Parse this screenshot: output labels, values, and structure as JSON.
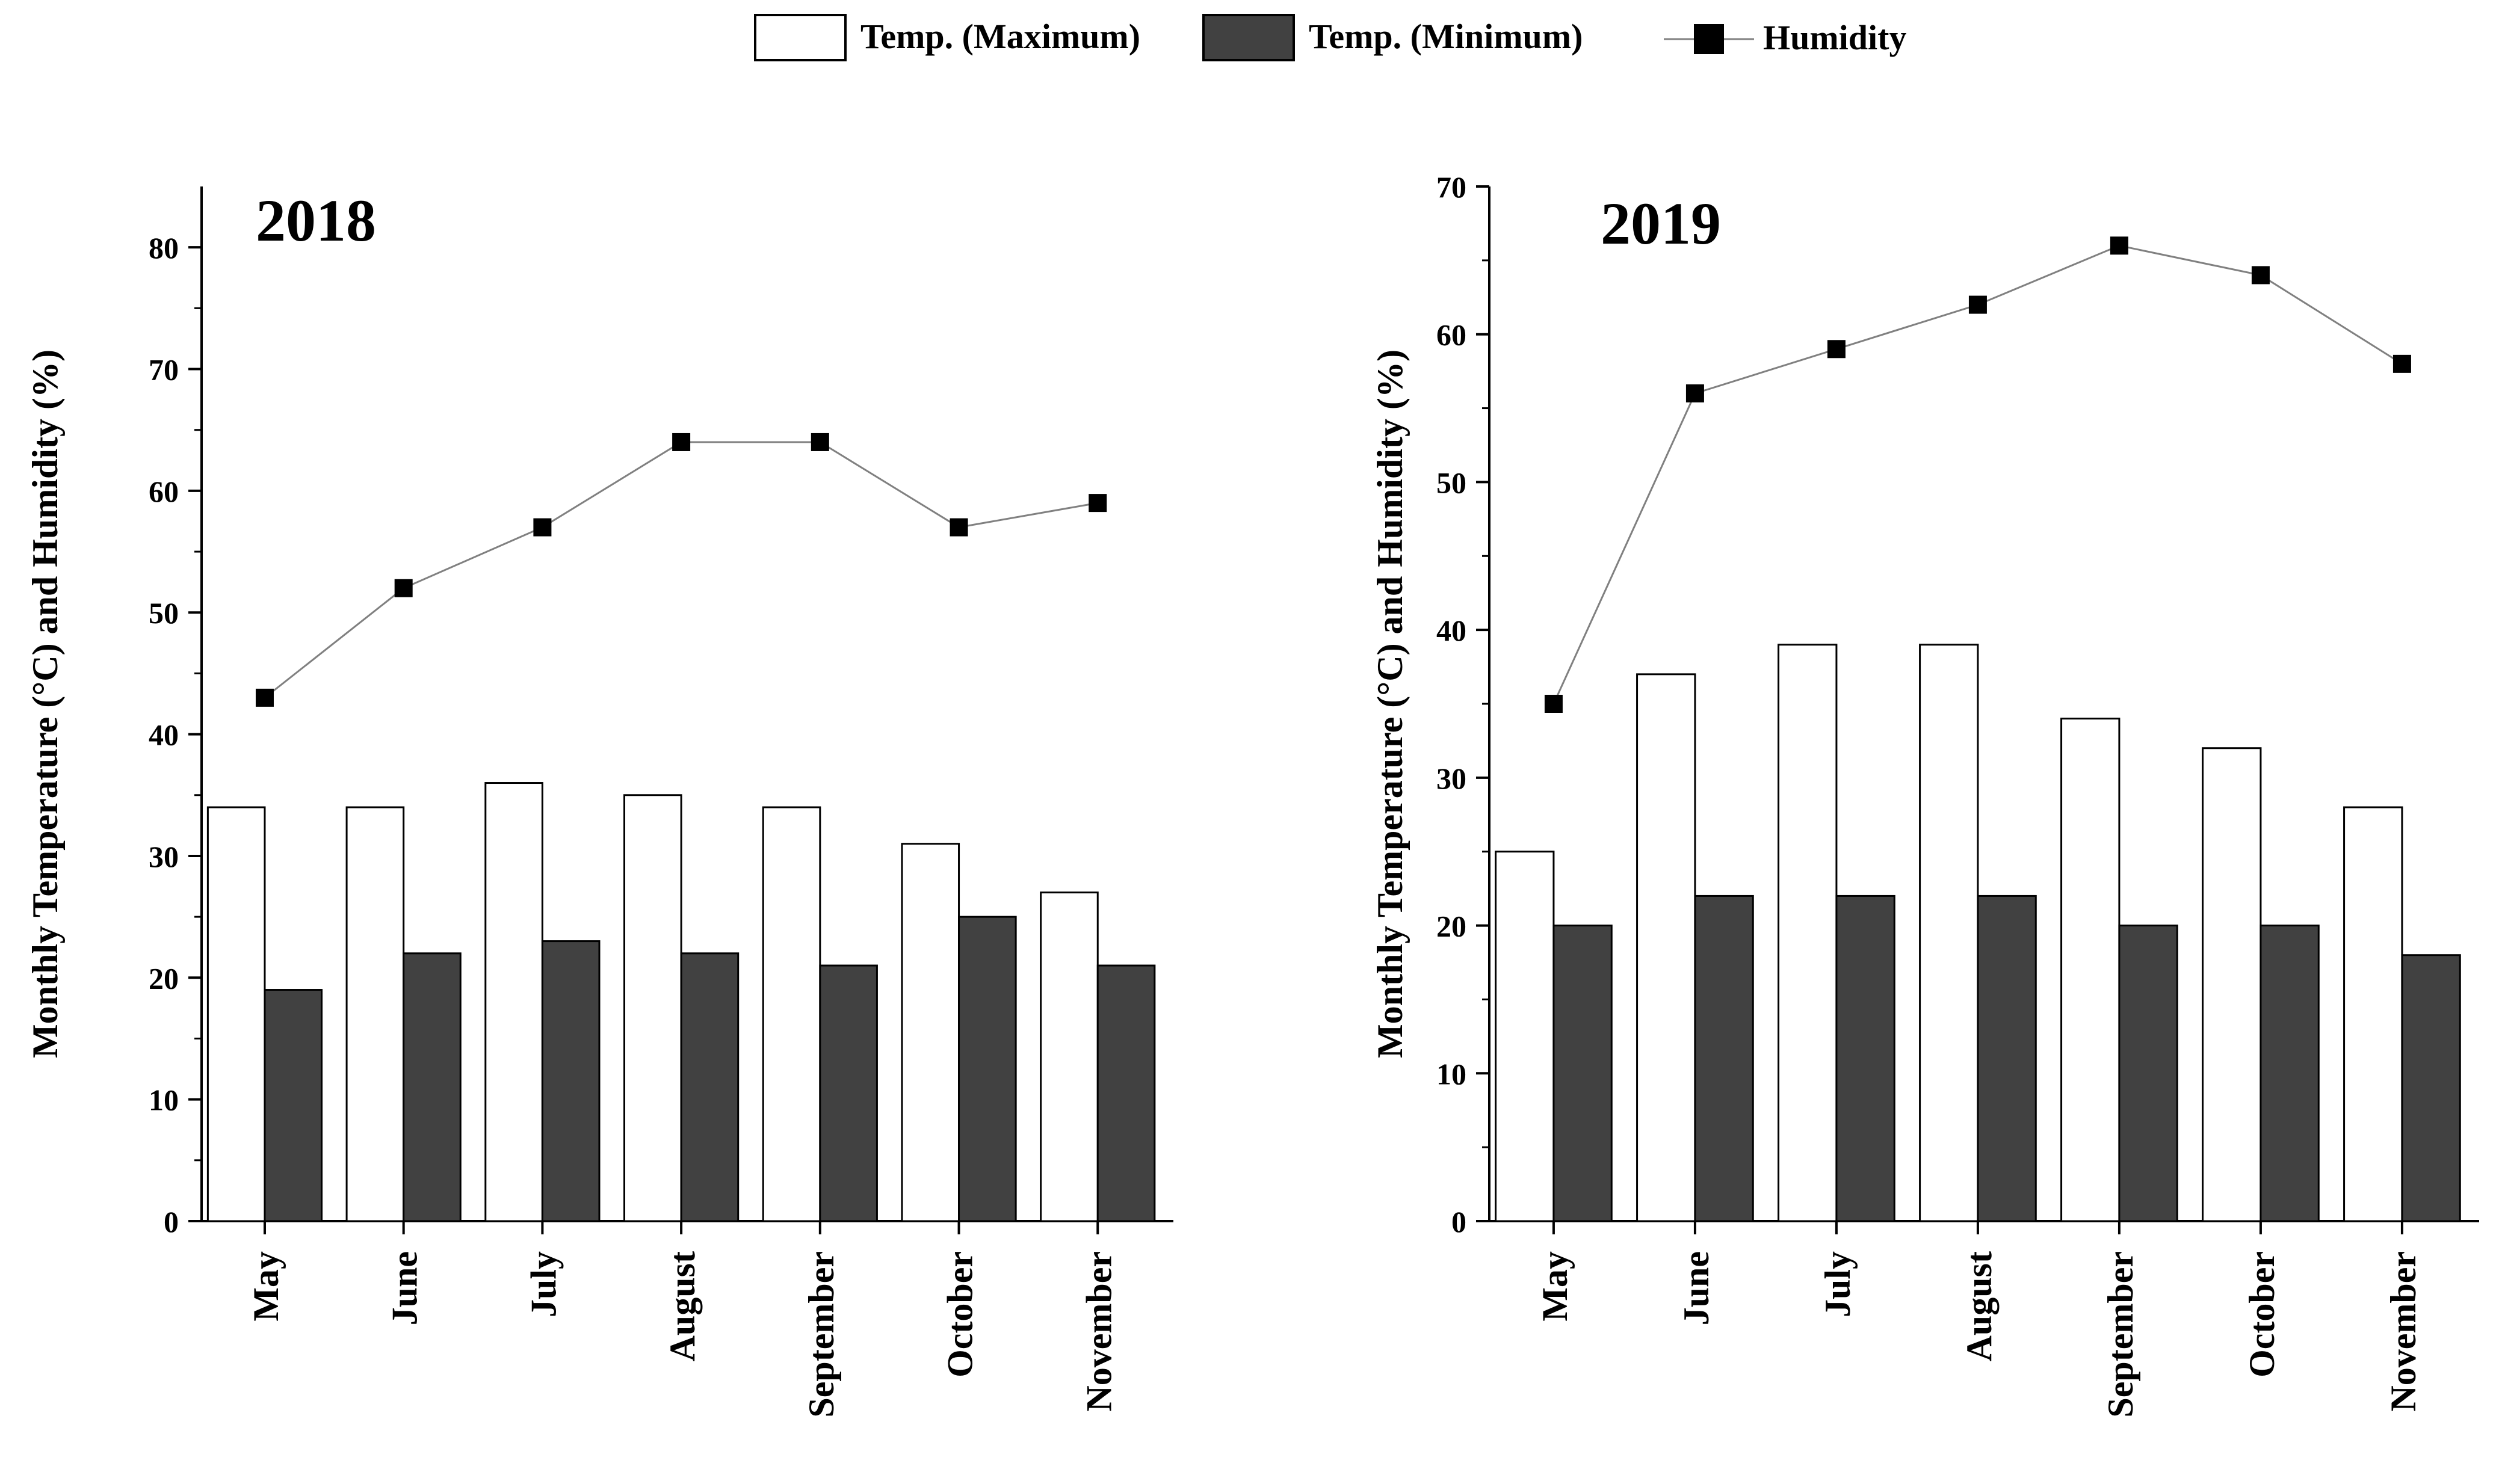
{
  "legend": {
    "max_label": "Temp. (Maximum)",
    "min_label": "Temp. (Minimum)",
    "humidity_label": "Humidity"
  },
  "colors": {
    "max_fill": "#ffffff",
    "min_fill": "#414141",
    "stroke": "#000000",
    "humidity_line": "#808080",
    "humidity_marker": "#000000"
  },
  "chart_data": [
    {
      "type": "bar",
      "title": "2018",
      "xlabel": "",
      "ylabel": "Monthly Temperature  (°C) and Humidity (%)",
      "categories": [
        "May",
        "June",
        "July",
        "August",
        "September",
        "October",
        "November"
      ],
      "ylim": [
        0,
        85
      ],
      "yticks": [
        0,
        10,
        20,
        30,
        40,
        50,
        60,
        70,
        80
      ],
      "series": [
        {
          "name": "Temp. (Maximum)",
          "kind": "bar",
          "values": [
            34,
            34,
            36,
            35,
            34,
            31,
            27
          ]
        },
        {
          "name": "Temp. (Minimum)",
          "kind": "bar",
          "values": [
            19,
            22,
            23,
            22,
            21,
            25,
            21
          ]
        },
        {
          "name": "Humidity",
          "kind": "line",
          "values": [
            43,
            52,
            57,
            64,
            64,
            57,
            59
          ]
        }
      ]
    },
    {
      "type": "bar",
      "title": "2019",
      "xlabel": "",
      "ylabel": "Monthly Temperature  (°C) and Humidity (%)",
      "categories": [
        "May",
        "June",
        "July",
        "August",
        "September",
        "October",
        "November"
      ],
      "ylim": [
        0,
        70
      ],
      "yticks": [
        0,
        10,
        20,
        30,
        40,
        50,
        60,
        70
      ],
      "series": [
        {
          "name": "Temp. (Maximum)",
          "kind": "bar",
          "values": [
            25,
            37,
            39,
            39,
            34,
            32,
            28
          ]
        },
        {
          "name": "Temp. (Minimum)",
          "kind": "bar",
          "values": [
            20,
            22,
            22,
            22,
            20,
            20,
            18
          ]
        },
        {
          "name": "Humidity",
          "kind": "line",
          "values": [
            35,
            56,
            59,
            62,
            66,
            64,
            58
          ]
        }
      ]
    }
  ]
}
